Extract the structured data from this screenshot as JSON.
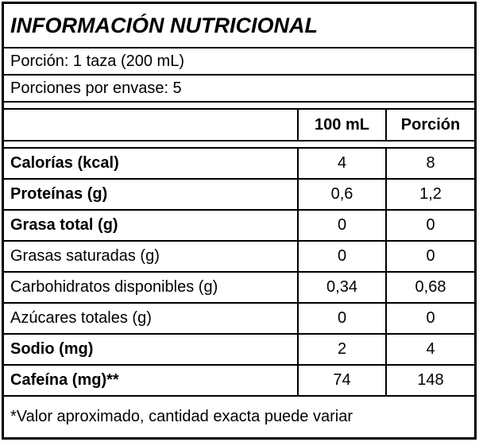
{
  "title": "INFORMACIÓN NUTRICIONAL",
  "serving": {
    "portion": "Porción: 1 taza (200 mL)",
    "servings_per_container": "Porciones por envase: 5"
  },
  "table": {
    "columns": [
      "100 mL",
      "Porción"
    ],
    "rows": [
      {
        "label": "Calorías (kcal)",
        "per_100ml": "4",
        "per_portion": "8"
      },
      {
        "label": "Proteínas (g)",
        "per_100ml": "0,6",
        "per_portion": "1,2"
      },
      {
        "label": "Grasa total (g)",
        "per_100ml": "0",
        "per_portion": "0"
      },
      {
        "label": "Grasas saturadas (g)",
        "per_100ml": "0",
        "per_portion": "0"
      },
      {
        "label": "Carbohidratos disponibles (g)",
        "per_100ml": "0,34",
        "per_portion": "0,68"
      },
      {
        "label": "Azúcares totales (g)",
        "per_100ml": "0",
        "per_portion": "0"
      },
      {
        "label": "Sodio (mg)",
        "per_100ml": "2",
        "per_portion": "4"
      },
      {
        "label": "Cafeína (mg)**",
        "per_100ml": "74",
        "per_portion": "148"
      }
    ]
  },
  "footnote": "*Valor aproximado, cantidad exacta puede variar",
  "colors": {
    "border": "#000000",
    "background": "#ffffff",
    "text": "#000000"
  }
}
